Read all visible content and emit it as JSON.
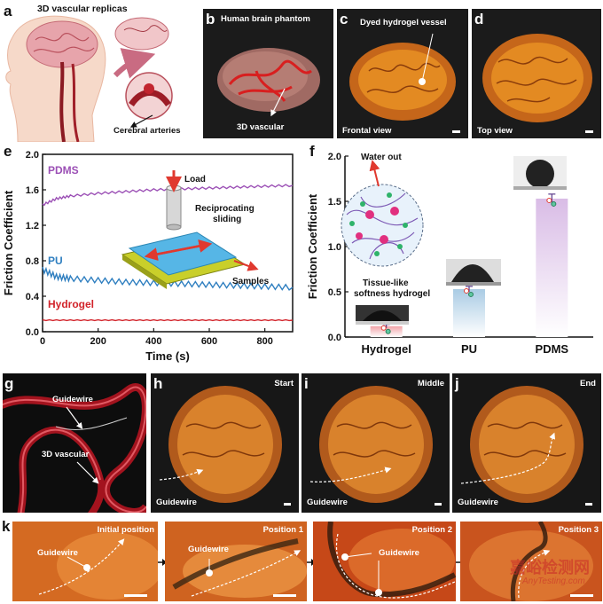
{
  "panels": {
    "a": {
      "label": "a",
      "title": "3D vascular replicas",
      "arrow_text": "Cerebral arteries"
    },
    "b": {
      "label": "b",
      "title": "Human brain phantom",
      "annotation": "3D vascular"
    },
    "c": {
      "label": "c",
      "title": "Dyed hydrogel vessel",
      "view": "Frontal view"
    },
    "d": {
      "label": "d",
      "view": "Top view"
    },
    "e": {
      "label": "e",
      "inset_load": "Load",
      "inset_motion": "Reciprocating\nsliding",
      "inset_samples": "Samples"
    },
    "f": {
      "label": "f",
      "water_out": "Water out",
      "tissue_like": "Tissue-like\nsoftness hydrogel"
    },
    "g": {
      "label": "g",
      "guidewire": "Guidewire",
      "vascular": "3D vascular"
    },
    "h": {
      "label": "h",
      "stage": "Start",
      "guidewire": "Guidewire"
    },
    "i": {
      "label": "i",
      "stage": "Middle",
      "guidewire": "Guidewire"
    },
    "j": {
      "label": "j",
      "stage": "End",
      "guidewire": "Guidewire"
    },
    "k": {
      "label": "k",
      "frames": [
        "Initial position",
        "Position 1",
        "Position 2",
        "Position 3"
      ],
      "guidewire": "Guidewire"
    }
  },
  "watermark": {
    "cn": "嘉峪检测网",
    "en": "AnyTesting.com"
  },
  "chart_data": [
    {
      "type": "line",
      "panel": "e",
      "xlabel": "Time (s)",
      "ylabel": "Friction Coefficient",
      "xlim": [
        0,
        900
      ],
      "ylim": [
        0.0,
        2.0
      ],
      "xticks": [
        "0",
        "200",
        "400",
        "600",
        "800"
      ],
      "yticks": [
        "0.0",
        "0.4",
        "0.8",
        "1.2",
        "1.6",
        "2.0"
      ],
      "series": [
        {
          "name": "PDMS",
          "color": "#9b4fb5",
          "x": [
            0,
            50,
            100,
            200,
            300,
            400,
            500,
            600,
            700,
            800,
            900
          ],
          "values": [
            1.43,
            1.5,
            1.53,
            1.56,
            1.58,
            1.6,
            1.61,
            1.62,
            1.63,
            1.64,
            1.65
          ]
        },
        {
          "name": "PU",
          "color": "#2f7fc0",
          "x": [
            0,
            50,
            100,
            200,
            300,
            400,
            500,
            600,
            700,
            800,
            900
          ],
          "values": [
            0.7,
            0.62,
            0.6,
            0.58,
            0.56,
            0.55,
            0.54,
            0.53,
            0.52,
            0.51,
            0.5
          ]
        },
        {
          "name": "Hydrogel",
          "color": "#d2232a",
          "x": [
            0,
            100,
            200,
            300,
            400,
            500,
            600,
            700,
            800,
            900
          ],
          "values": [
            0.13,
            0.13,
            0.13,
            0.13,
            0.13,
            0.13,
            0.13,
            0.13,
            0.13,
            0.13
          ]
        }
      ]
    },
    {
      "type": "bar",
      "panel": "f",
      "ylabel": "Friction Coefficient",
      "ylim": [
        0.0,
        2.0
      ],
      "yticks": [
        "0.0",
        "0.5",
        "1.0",
        "1.5",
        "2.0"
      ],
      "categories": [
        "Hydrogel",
        "PU",
        "PDMS"
      ],
      "values": [
        0.12,
        0.53,
        1.53
      ],
      "errors": [
        0.02,
        0.03,
        0.05
      ],
      "colors": [
        "#f2a3a8",
        "#a9cbe4",
        "#d9bce6"
      ]
    }
  ]
}
